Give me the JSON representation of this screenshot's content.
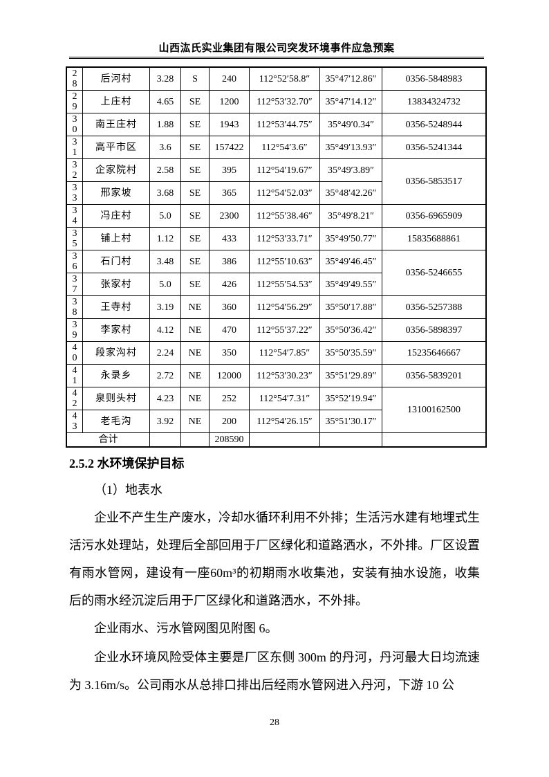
{
  "header": {
    "title": "山西汯氏实业集团有限公司突发环境事件应急预案"
  },
  "table": {
    "rows": [
      {
        "no": "28",
        "name": "后河村",
        "dist": "3.28",
        "dir": "S",
        "pop": "240",
        "lon": "112°52′58.8″",
        "lat": "35°47′12.86″",
        "phone": "0356-5848983",
        "span": 1
      },
      {
        "no": "29",
        "name": "上庄村",
        "dist": "4.65",
        "dir": "SE",
        "pop": "1200",
        "lon": "112°53′32.70″",
        "lat": "35°47′14.12″",
        "phone": "13834324732",
        "span": 1
      },
      {
        "no": "30",
        "name": "南王庄村",
        "dist": "1.88",
        "dir": "SE",
        "pop": "1943",
        "lon": "112°53′44.75″",
        "lat": "35°49′0.34″",
        "phone": "0356-5248944",
        "span": 1
      },
      {
        "no": "31",
        "name": "高平市区",
        "dist": "3.6",
        "dir": "SE",
        "pop": "157422",
        "lon": "112°54′3.6″",
        "lat": "35°49′13.93″",
        "phone": "0356-5241344",
        "span": 1
      },
      {
        "no": "32",
        "name": "企家院村",
        "dist": "2.58",
        "dir": "SE",
        "pop": "395",
        "lon": "112°54′19.67″",
        "lat": "35°49′3.89″",
        "phone": "0356-5853517",
        "span": 2
      },
      {
        "no": "33",
        "name": "邢家坡",
        "dist": "3.68",
        "dir": "SE",
        "pop": "365",
        "lon": "112°54′52.03″",
        "lat": "35°48′42.26″",
        "phone": null,
        "span": 0
      },
      {
        "no": "34",
        "name": "冯庄村",
        "dist": "5.0",
        "dir": "SE",
        "pop": "2300",
        "lon": "112°55′38.46″",
        "lat": "35°49′8.21″",
        "phone": "0356-6965909",
        "span": 1
      },
      {
        "no": "35",
        "name": "铺上村",
        "dist": "1.12",
        "dir": "SE",
        "pop": "433",
        "lon": "112°53′33.71″",
        "lat": "35°49′50.77″",
        "phone": "15835688861",
        "span": 1
      },
      {
        "no": "36",
        "name": "石门村",
        "dist": "3.48",
        "dir": "SE",
        "pop": "386",
        "lon": "112°55′10.63″",
        "lat": "35°49′46.45″",
        "phone": "0356-5246655",
        "span": 2
      },
      {
        "no": "37",
        "name": "张家村",
        "dist": "5.0",
        "dir": "SE",
        "pop": "426",
        "lon": "112°55′54.53″",
        "lat": "35°49′49.55″",
        "phone": null,
        "span": 0
      },
      {
        "no": "38",
        "name": "王寺村",
        "dist": "3.19",
        "dir": "NE",
        "pop": "360",
        "lon": "112°54′56.29″",
        "lat": "35°50′17.88″",
        "phone": "0356-5257388",
        "span": 1
      },
      {
        "no": "39",
        "name": "李家村",
        "dist": "4.12",
        "dir": "NE",
        "pop": "470",
        "lon": "112°55′37.22″",
        "lat": "35°50′36.42″",
        "phone": "0356-5898397",
        "span": 1
      },
      {
        "no": "40",
        "name": "段家沟村",
        "dist": "2.24",
        "dir": "NE",
        "pop": "350",
        "lon": "112°54′7.85″",
        "lat": "35°50′35.59″",
        "phone": "15235646667",
        "span": 1
      },
      {
        "no": "41",
        "name": "永录乡",
        "dist": "2.72",
        "dir": "NE",
        "pop": "12000",
        "lon": "112°53′30.23″",
        "lat": "35°51′29.89″",
        "phone": "0356-5839201",
        "span": 1
      },
      {
        "no": "42",
        "name": "泉则头村",
        "dist": "4.23",
        "dir": "NE",
        "pop": "252",
        "lon": "112°54′7.31″",
        "lat": "35°52′19.94″",
        "phone": "13100162500",
        "span": 2
      },
      {
        "no": "43",
        "name": "老毛沟",
        "dist": "3.92",
        "dir": "NE",
        "pop": "200",
        "lon": "112°54′26.15″",
        "lat": "35°51′30.17″",
        "phone": null,
        "span": 0
      }
    ],
    "total": {
      "label": "合计",
      "pop": "208590"
    }
  },
  "section": {
    "heading": "2.5.2  水环境保护目标",
    "sub": "（1）地表水",
    "p1": "企业不产生生产废水，冷却水循环利用不外排；生活污水建有地埋式生活污水处理站，处理后全部回用于厂区绿化和道路洒水，不外排。厂区设置有雨水管网，建设有一座60m³的初期雨水收集池，安装有抽水设施，收集后的雨水经沉淀后用于厂区绿化和道路洒水，不外排。",
    "p2": "企业雨水、污水管网图见附图 6。",
    "p3": "企业水环境风险受体主要是厂区东侧 300m 的丹河，丹河最大日均流速为 3.16m/s。公司雨水从总排口排出后经雨水管网进入丹河，下游 10 公"
  },
  "page_number": "28"
}
